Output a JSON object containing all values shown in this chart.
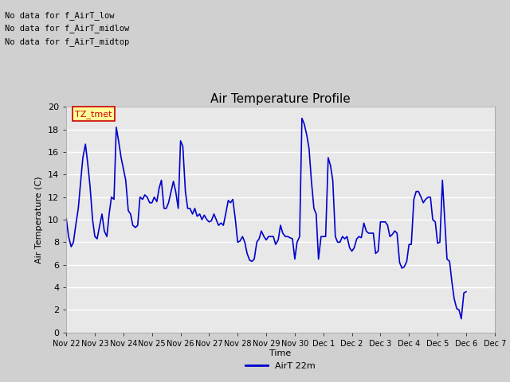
{
  "title": "Air Temperature Profile",
  "xlabel": "Time",
  "ylabel": "Air Temperature (C)",
  "ylim": [
    0,
    20
  ],
  "yticks": [
    0,
    2,
    4,
    6,
    8,
    10,
    12,
    14,
    16,
    18,
    20
  ],
  "line_color": "#0000cc",
  "line_width": 1.2,
  "legend_label": "AirT 22m",
  "no_data_texts": [
    "No data for f_AirT_low",
    "No data for f_AirT_midlow",
    "No data for f_AirT_midtop"
  ],
  "tz_label": "TZ_tmet",
  "tick_labels": [
    "Nov 22",
    "Nov 23",
    "Nov 24",
    "Nov 25",
    "Nov 26",
    "Nov 27",
    "Nov 28",
    "Nov 29",
    "Nov 30",
    "Dec 1",
    "Dec 2",
    "Dec 3",
    "Dec 4",
    "Dec 5",
    "Dec 6",
    "Dec 7"
  ],
  "x_values": [
    0,
    0.08,
    0.17,
    0.25,
    0.33,
    0.42,
    0.5,
    0.58,
    0.67,
    0.75,
    0.83,
    0.92,
    1.0,
    1.08,
    1.17,
    1.25,
    1.33,
    1.42,
    1.5,
    1.58,
    1.67,
    1.75,
    1.83,
    1.92,
    2.0,
    2.08,
    2.17,
    2.25,
    2.33,
    2.42,
    2.5,
    2.58,
    2.67,
    2.75,
    2.83,
    2.92,
    3.0,
    3.08,
    3.17,
    3.25,
    3.33,
    3.42,
    3.5,
    3.58,
    3.67,
    3.75,
    3.83,
    3.92,
    4.0,
    4.08,
    4.17,
    4.25,
    4.33,
    4.42,
    4.5,
    4.58,
    4.67,
    4.75,
    4.83,
    4.92,
    5.0,
    5.08,
    5.17,
    5.25,
    5.33,
    5.42,
    5.5,
    5.58,
    5.67,
    5.75,
    5.83,
    5.92,
    6.0,
    6.08,
    6.17,
    6.25,
    6.33,
    6.42,
    6.5,
    6.58,
    6.67,
    6.75,
    6.83,
    6.92,
    7.0,
    7.08,
    7.17,
    7.25,
    7.33,
    7.42,
    7.5,
    7.58,
    7.67,
    7.75,
    7.83,
    7.92,
    8.0,
    8.08,
    8.17,
    8.25,
    8.33,
    8.42,
    8.5,
    8.58,
    8.67,
    8.75,
    8.83,
    8.92,
    9.0,
    9.08,
    9.17,
    9.25,
    9.33,
    9.42,
    9.5,
    9.58,
    9.67,
    9.75,
    9.83,
    9.92,
    10.0,
    10.08,
    10.17,
    10.25,
    10.33,
    10.42,
    10.5,
    10.58,
    10.67,
    10.75,
    10.83,
    10.92,
    11.0,
    11.08,
    11.17,
    11.25,
    11.33,
    11.42,
    11.5,
    11.58,
    11.67,
    11.75,
    11.83,
    11.92,
    12.0,
    12.08,
    12.17,
    12.25,
    12.33,
    12.42,
    12.5,
    12.58,
    12.67,
    12.75,
    12.83,
    12.92,
    13.0,
    13.08,
    13.17,
    13.25,
    13.33,
    13.42,
    13.5,
    13.58,
    13.67,
    13.75,
    13.83,
    13.92,
    14.0
  ],
  "y_values": [
    10.1,
    8.5,
    7.6,
    8.0,
    9.5,
    11.0,
    13.3,
    15.5,
    16.7,
    15.0,
    13.0,
    10.0,
    8.5,
    8.3,
    9.5,
    10.5,
    9.0,
    8.5,
    10.5,
    12.0,
    11.8,
    18.2,
    17.0,
    15.5,
    14.5,
    13.5,
    10.8,
    10.5,
    9.5,
    9.3,
    9.5,
    12.0,
    11.8,
    12.2,
    12.0,
    11.5,
    11.5,
    12.0,
    11.6,
    12.8,
    13.5,
    11.0,
    11.0,
    11.5,
    12.5,
    13.4,
    12.5,
    11.0,
    17.0,
    16.5,
    12.5,
    11.0,
    11.0,
    10.5,
    11.0,
    10.3,
    10.5,
    10.0,
    10.4,
    10.0,
    9.8,
    9.9,
    10.5,
    10.0,
    9.5,
    9.7,
    9.5,
    10.5,
    11.7,
    11.5,
    11.8,
    10.0,
    8.0,
    8.1,
    8.5,
    8.0,
    7.0,
    6.4,
    6.3,
    6.5,
    8.0,
    8.3,
    9.0,
    8.5,
    8.2,
    8.5,
    8.5,
    8.5,
    7.8,
    8.2,
    9.5,
    8.8,
    8.5,
    8.5,
    8.4,
    8.3,
    6.5,
    8.0,
    8.5,
    19.0,
    18.5,
    17.5,
    16.3,
    13.5,
    11.0,
    10.5,
    6.5,
    8.5,
    8.5,
    8.5,
    15.5,
    14.8,
    13.5,
    8.5,
    8.0,
    8.0,
    8.5,
    8.3,
    8.5,
    7.5,
    7.2,
    7.5,
    8.3,
    8.5,
    8.4,
    9.7,
    9.0,
    8.8,
    8.8,
    8.8,
    7.0,
    7.2,
    9.8,
    9.8,
    9.8,
    9.5,
    8.5,
    8.7,
    9.0,
    8.8,
    6.2,
    5.7,
    5.8,
    6.3,
    7.8,
    7.8,
    11.8,
    12.5,
    12.5,
    12.0,
    11.5,
    11.8,
    12.0,
    12.0,
    10.0,
    9.8,
    7.9,
    8.0,
    13.5,
    10.0,
    6.5,
    6.3,
    4.5,
    3.0,
    2.1,
    2.0,
    1.2,
    3.5,
    3.6
  ]
}
